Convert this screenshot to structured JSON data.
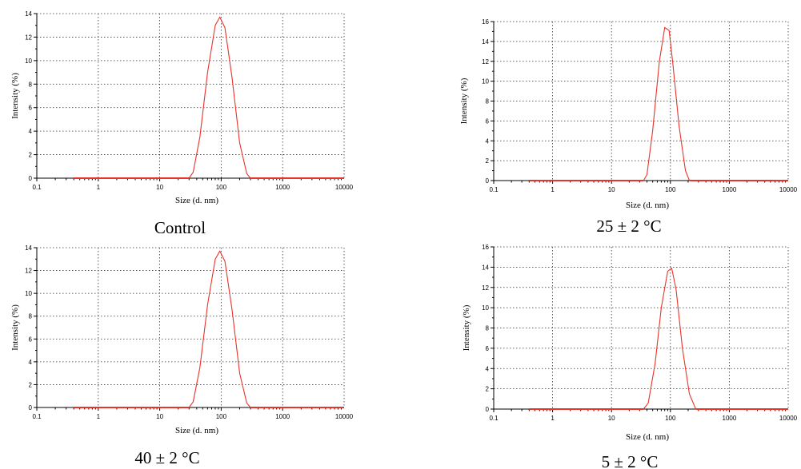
{
  "chart_data": [
    {
      "type": "line",
      "caption": "Control",
      "xlabel": "Size (d. nm)",
      "ylabel": "Intensity (%)",
      "xscale": "log",
      "xlim": [
        0.1,
        10000
      ],
      "ylim": [
        0,
        14
      ],
      "xticks": [
        "0.1",
        "1",
        "10",
        "100",
        "1000",
        "10000"
      ],
      "yticks": [
        "0",
        "2",
        "4",
        "6",
        "8",
        "10",
        "12",
        "14"
      ],
      "grid": true,
      "color": "#e8342a",
      "series": [
        {
          "x": [
            0.4,
            30,
            35,
            45,
            60,
            80,
            95,
            115,
            150,
            200,
            260,
            300,
            10000
          ],
          "y": [
            0,
            0,
            0.5,
            3.5,
            9,
            13,
            13.7,
            12.8,
            8.6,
            3.0,
            0.4,
            0,
            0
          ]
        }
      ]
    },
    {
      "type": "line",
      "caption": "25 ± 2 °C",
      "xlabel": "Size (d. nm)",
      "ylabel": "Intensity (%)",
      "xscale": "log",
      "xlim": [
        0.1,
        10000
      ],
      "ylim": [
        0,
        16
      ],
      "xticks": [
        "0.1",
        "1",
        "10",
        "100",
        "1000",
        "10000"
      ],
      "yticks": [
        "0",
        "2",
        "4",
        "6",
        "8",
        "10",
        "12",
        "14",
        "16"
      ],
      "grid": true,
      "color": "#e8342a",
      "series": [
        {
          "x": [
            0.4,
            35,
            40,
            50,
            65,
            80,
            95,
            110,
            140,
            180,
            210,
            10000
          ],
          "y": [
            0,
            0,
            0.6,
            5,
            12,
            15.4,
            15.1,
            11.8,
            5.5,
            1.0,
            0,
            0
          ]
        }
      ]
    },
    {
      "type": "line",
      "caption": "40 ± 2 °C",
      "xlabel": "Size (d. nm)",
      "ylabel": "Intensity (%)",
      "xscale": "log",
      "xlim": [
        0.1,
        10000
      ],
      "ylim": [
        0,
        14
      ],
      "xticks": [
        "0.1",
        "1",
        "10",
        "100",
        "1000",
        "10000"
      ],
      "yticks": [
        "0",
        "2",
        "4",
        "6",
        "8",
        "10",
        "12",
        "14"
      ],
      "grid": true,
      "color": "#e8342a",
      "series": [
        {
          "x": [
            0.4,
            30,
            35,
            45,
            60,
            80,
            95,
            115,
            150,
            200,
            260,
            300,
            10000
          ],
          "y": [
            0,
            0,
            0.5,
            3.5,
            9,
            13,
            13.7,
            12.8,
            8.6,
            3.0,
            0.4,
            0,
            0
          ]
        }
      ]
    },
    {
      "type": "line",
      "caption": "5 ± 2 °C",
      "xlabel": "Size (d. nm)",
      "ylabel": "Intensity (%)",
      "xscale": "log",
      "xlim": [
        0.1,
        10000
      ],
      "ylim": [
        0,
        16
      ],
      "xticks": [
        "0.1",
        "1",
        "10",
        "100",
        "1000",
        "10000"
      ],
      "yticks": [
        "0",
        "2",
        "4",
        "6",
        "8",
        "10",
        "12",
        "14",
        "16"
      ],
      "grid": true,
      "color": "#e8342a",
      "series": [
        {
          "x": [
            0.4,
            35,
            42,
            55,
            70,
            90,
            105,
            125,
            160,
            210,
            270,
            10000
          ],
          "y": [
            0,
            0,
            0.6,
            4.5,
            10,
            13.6,
            13.9,
            11.8,
            6,
            1.5,
            0,
            0
          ]
        }
      ]
    }
  ]
}
